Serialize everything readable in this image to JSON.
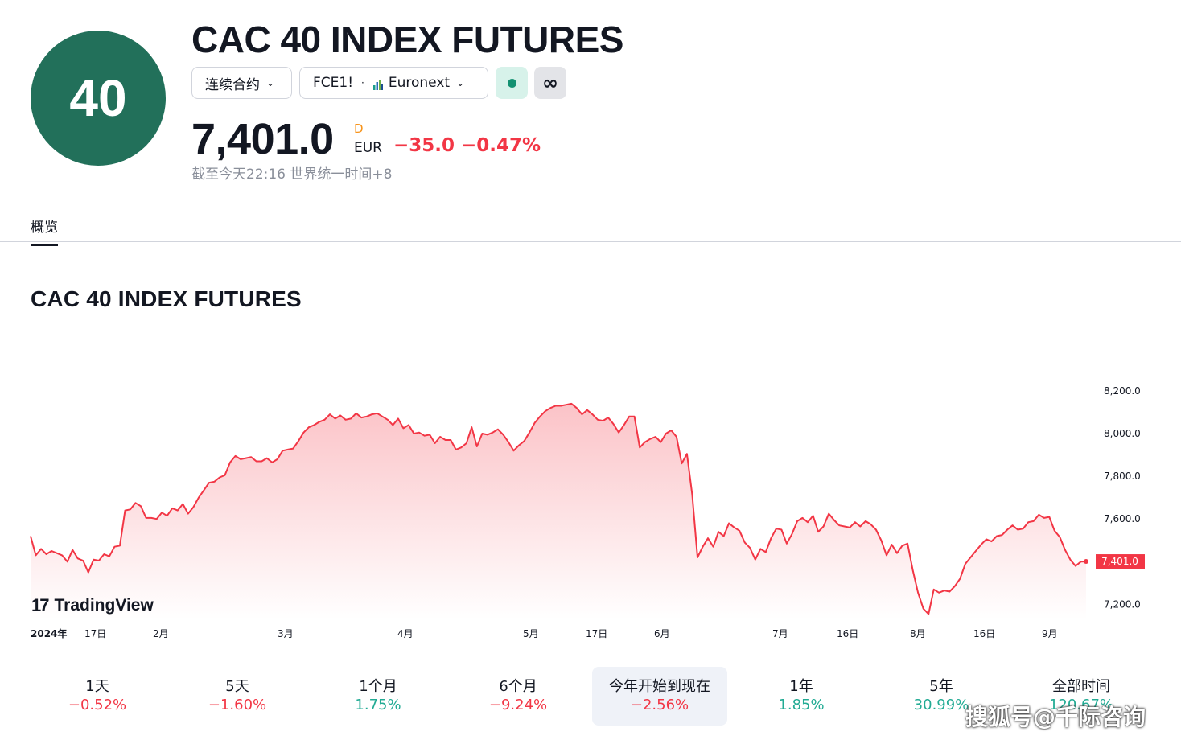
{
  "header": {
    "logo_text": "40",
    "title": "CAC 40 INDEX FUTURES",
    "contract_label": "连续合约",
    "symbol": "FCE1!",
    "separator": "·",
    "exchange": "Euronext",
    "infinity_glyph": "∞",
    "price": "7,401.0",
    "price_flag": "D",
    "currency": "EUR",
    "change": "−35.0 −0.47%",
    "as_of": "截至今天22:16 世界统一时间+8"
  },
  "tabs": [
    {
      "label": "概览"
    }
  ],
  "section_title": "CAC 40 INDEX FUTURES",
  "branding": {
    "name": "TradingView",
    "logo_glyph": "17"
  },
  "chart_data": {
    "type": "area",
    "title": "CAC 40 INDEX FUTURES",
    "x_labels": [
      "2024年",
      "17日",
      "2月",
      "3月",
      "4月",
      "5月",
      "17日",
      "6月",
      "7月",
      "16日",
      "8月",
      "16日",
      "9月"
    ],
    "y_ticks": [
      "8,200.0",
      "8,000.0",
      "7,800.0",
      "7,600.0",
      "7,200.0"
    ],
    "y_tick_values": [
      8200,
      8000,
      7800,
      7600,
      7200
    ],
    "ylim": [
      7130,
      8260
    ],
    "last_value_label": "7,401.0",
    "last_value": 7401,
    "line_color": "#f23645",
    "series": [
      {
        "values": [
          7520,
          7430,
          7460,
          7435,
          7450,
          7440,
          7430,
          7400,
          7455,
          7415,
          7405,
          7350,
          7410,
          7405,
          7435,
          7425,
          7470,
          7475,
          7640,
          7645,
          7675,
          7660,
          7605,
          7605,
          7600,
          7630,
          7615,
          7650,
          7640,
          7670,
          7625,
          7655,
          7700,
          7735,
          7770,
          7775,
          7795,
          7805,
          7865,
          7895,
          7880,
          7885,
          7890,
          7870,
          7870,
          7885,
          7865,
          7880,
          7920,
          7925,
          7930,
          7965,
          8005,
          8030,
          8040,
          8055,
          8065,
          8090,
          8070,
          8085,
          8065,
          8070,
          8095,
          8075,
          8080,
          8090,
          8095,
          8080,
          8065,
          8040,
          8070,
          8025,
          8040,
          8000,
          8005,
          7990,
          7995,
          7955,
          7985,
          7970,
          7970,
          7925,
          7935,
          7955,
          8030,
          7940,
          8000,
          7995,
          8005,
          8020,
          7995,
          7960,
          7920,
          7945,
          7965,
          8005,
          8050,
          8080,
          8105,
          8120,
          8130,
          8130,
          8135,
          8140,
          8120,
          8090,
          8110,
          8090,
          8065,
          8060,
          8075,
          8045,
          8005,
          8040,
          8080,
          8080,
          7935,
          7960,
          7975,
          7985,
          7960,
          8000,
          8015,
          7985,
          7860,
          7905,
          7715,
          7420,
          7470,
          7510,
          7470,
          7540,
          7520,
          7580,
          7560,
          7545,
          7490,
          7465,
          7410,
          7460,
          7445,
          7510,
          7555,
          7550,
          7485,
          7530,
          7590,
          7605,
          7585,
          7615,
          7540,
          7565,
          7625,
          7595,
          7570,
          7565,
          7560,
          7585,
          7565,
          7590,
          7575,
          7550,
          7500,
          7430,
          7480,
          7440,
          7475,
          7485,
          7360,
          7255,
          7180,
          7155,
          7270,
          7255,
          7265,
          7260,
          7285,
          7320,
          7390,
          7420,
          7450,
          7480,
          7505,
          7495,
          7520,
          7525,
          7550,
          7570,
          7550,
          7555,
          7585,
          7590,
          7620,
          7605,
          7610,
          7545,
          7515,
          7455,
          7410,
          7380,
          7400,
          7401
        ]
      }
    ]
  },
  "periods": [
    {
      "label": "1天",
      "value": "−0.52%",
      "trend": "neg"
    },
    {
      "label": "5天",
      "value": "−1.60%",
      "trend": "neg"
    },
    {
      "label": "1个月",
      "value": "1.75%",
      "trend": "pos"
    },
    {
      "label": "6个月",
      "value": "−9.24%",
      "trend": "neg"
    },
    {
      "label": "今年开始到现在",
      "value": "−2.56%",
      "trend": "neg"
    },
    {
      "label": "1年",
      "value": "1.85%",
      "trend": "pos"
    },
    {
      "label": "5年",
      "value": "30.99%",
      "trend": "pos"
    },
    {
      "label": "全部时间",
      "value": "120.67%",
      "trend": "pos"
    }
  ],
  "watermark": "搜狐号@千际咨询",
  "colors": {
    "brand": "#22705a",
    "negative": "#f23645",
    "positive": "#22ab94",
    "status": "#129171"
  }
}
